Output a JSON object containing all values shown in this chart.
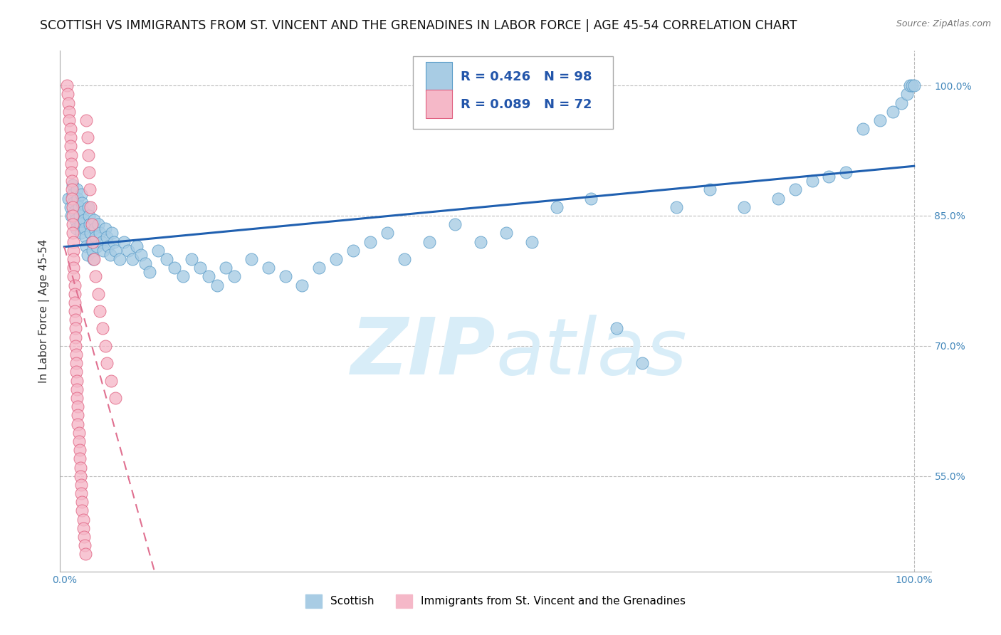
{
  "title": "SCOTTISH VS IMMIGRANTS FROM ST. VINCENT AND THE GRENADINES IN LABOR FORCE | AGE 45-54 CORRELATION CHART",
  "source": "Source: ZipAtlas.com",
  "ylabel": "In Labor Force | Age 45-54",
  "x_min": 0.0,
  "x_max": 1.0,
  "y_min": 0.44,
  "y_max": 1.04,
  "y_ticks": [
    0.55,
    0.7,
    0.85,
    1.0
  ],
  "y_tick_labels": [
    "55.0%",
    "70.0%",
    "85.0%",
    "100.0%"
  ],
  "x_ticks": [
    0.0,
    0.25,
    0.5,
    0.75,
    1.0
  ],
  "x_tick_labels": [
    "0.0%",
    "",
    "",
    "",
    "100.0%"
  ],
  "legend_r_scottish": "R = 0.426",
  "legend_n_scottish": "N = 98",
  "legend_r_immigrants": "R = 0.089",
  "legend_n_immigrants": "N = 72",
  "legend_label_scottish": "Scottish",
  "legend_label_immigrants": "Immigrants from St. Vincent and the Grenadines",
  "blue_color": "#a8cce4",
  "blue_edge": "#5b9dc9",
  "pink_color": "#f5b8c8",
  "pink_edge": "#e06080",
  "line_blue": "#2060b0",
  "line_pink": "#e07090",
  "legend_r_color": "#2255aa",
  "watermark_color": "#d8edf8",
  "background_color": "#ffffff",
  "grid_color": "#bbbbbb",
  "title_fontsize": 12.5,
  "axis_label_fontsize": 11,
  "tick_fontsize": 10,
  "tick_color": "#4488bb",
  "scottish_x": [
    0.005,
    0.007,
    0.008,
    0.01,
    0.01,
    0.011,
    0.012,
    0.013,
    0.014,
    0.015,
    0.016,
    0.017,
    0.018,
    0.019,
    0.02,
    0.02,
    0.021,
    0.022,
    0.023,
    0.024,
    0.025,
    0.026,
    0.027,
    0.028,
    0.029,
    0.03,
    0.031,
    0.032,
    0.033,
    0.034,
    0.035,
    0.036,
    0.037,
    0.038,
    0.04,
    0.042,
    0.044,
    0.046,
    0.048,
    0.05,
    0.052,
    0.054,
    0.056,
    0.058,
    0.06,
    0.065,
    0.07,
    0.075,
    0.08,
    0.085,
    0.09,
    0.095,
    0.1,
    0.11,
    0.12,
    0.13,
    0.14,
    0.15,
    0.16,
    0.17,
    0.18,
    0.19,
    0.2,
    0.22,
    0.24,
    0.26,
    0.28,
    0.3,
    0.32,
    0.34,
    0.36,
    0.38,
    0.4,
    0.43,
    0.46,
    0.49,
    0.52,
    0.55,
    0.58,
    0.62,
    0.65,
    0.68,
    0.72,
    0.76,
    0.8,
    0.84,
    0.86,
    0.88,
    0.9,
    0.92,
    0.94,
    0.96,
    0.975,
    0.985,
    0.992,
    0.995,
    0.998,
    1.0
  ],
  "scottish_y": [
    0.87,
    0.86,
    0.85,
    0.885,
    0.875,
    0.865,
    0.855,
    0.845,
    0.835,
    0.88,
    0.87,
    0.86,
    0.85,
    0.84,
    0.83,
    0.875,
    0.865,
    0.855,
    0.845,
    0.835,
    0.825,
    0.815,
    0.805,
    0.86,
    0.85,
    0.84,
    0.83,
    0.82,
    0.81,
    0.8,
    0.845,
    0.835,
    0.825,
    0.815,
    0.84,
    0.83,
    0.82,
    0.81,
    0.835,
    0.825,
    0.815,
    0.805,
    0.83,
    0.82,
    0.81,
    0.8,
    0.82,
    0.81,
    0.8,
    0.815,
    0.805,
    0.795,
    0.785,
    0.81,
    0.8,
    0.79,
    0.78,
    0.8,
    0.79,
    0.78,
    0.77,
    0.79,
    0.78,
    0.8,
    0.79,
    0.78,
    0.77,
    0.79,
    0.8,
    0.81,
    0.82,
    0.83,
    0.8,
    0.82,
    0.84,
    0.82,
    0.83,
    0.82,
    0.86,
    0.87,
    0.72,
    0.68,
    0.86,
    0.88,
    0.86,
    0.87,
    0.88,
    0.89,
    0.895,
    0.9,
    0.95,
    0.96,
    0.97,
    0.98,
    0.99,
    1.0,
    1.0,
    1.0
  ],
  "immigrants_x": [
    0.003,
    0.004,
    0.005,
    0.006,
    0.006,
    0.007,
    0.007,
    0.007,
    0.008,
    0.008,
    0.008,
    0.009,
    0.009,
    0.009,
    0.01,
    0.01,
    0.01,
    0.01,
    0.011,
    0.011,
    0.011,
    0.011,
    0.011,
    0.012,
    0.012,
    0.012,
    0.012,
    0.013,
    0.013,
    0.013,
    0.013,
    0.014,
    0.014,
    0.014,
    0.015,
    0.015,
    0.015,
    0.016,
    0.016,
    0.016,
    0.017,
    0.017,
    0.018,
    0.018,
    0.019,
    0.019,
    0.02,
    0.02,
    0.021,
    0.021,
    0.022,
    0.022,
    0.023,
    0.024,
    0.025,
    0.026,
    0.027,
    0.028,
    0.029,
    0.03,
    0.031,
    0.032,
    0.033,
    0.035,
    0.037,
    0.04,
    0.042,
    0.045,
    0.048,
    0.05,
    0.055,
    0.06
  ],
  "immigrants_y": [
    1.0,
    0.99,
    0.98,
    0.97,
    0.96,
    0.95,
    0.94,
    0.93,
    0.92,
    0.91,
    0.9,
    0.89,
    0.88,
    0.87,
    0.86,
    0.85,
    0.84,
    0.83,
    0.82,
    0.81,
    0.8,
    0.79,
    0.78,
    0.77,
    0.76,
    0.75,
    0.74,
    0.73,
    0.72,
    0.71,
    0.7,
    0.69,
    0.68,
    0.67,
    0.66,
    0.65,
    0.64,
    0.63,
    0.62,
    0.61,
    0.6,
    0.59,
    0.58,
    0.57,
    0.56,
    0.55,
    0.54,
    0.53,
    0.52,
    0.51,
    0.5,
    0.49,
    0.48,
    0.47,
    0.46,
    0.96,
    0.94,
    0.92,
    0.9,
    0.88,
    0.86,
    0.84,
    0.82,
    0.8,
    0.78,
    0.76,
    0.74,
    0.72,
    0.7,
    0.68,
    0.66,
    0.64
  ]
}
